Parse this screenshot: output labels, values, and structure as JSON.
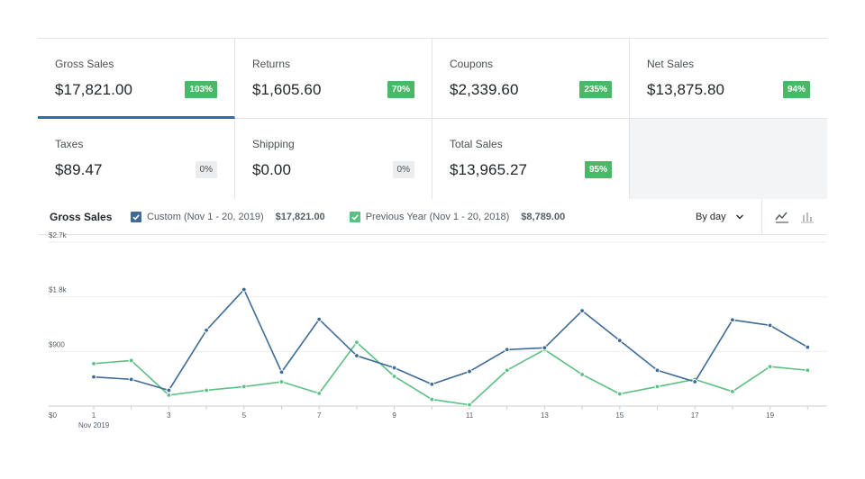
{
  "stats": [
    {
      "label": "Gross Sales",
      "value": "$17,821.00",
      "delta": "103%",
      "trend": "up",
      "selected": true
    },
    {
      "label": "Returns",
      "value": "$1,605.60",
      "delta": "70%",
      "trend": "up",
      "selected": false
    },
    {
      "label": "Coupons",
      "value": "$2,339.60",
      "delta": "235%",
      "trend": "up",
      "selected": false
    },
    {
      "label": "Net Sales",
      "value": "$13,875.80",
      "delta": "94%",
      "trend": "up",
      "selected": false
    },
    {
      "label": "Taxes",
      "value": "$89.47",
      "delta": "0%",
      "trend": "flat",
      "selected": false
    },
    {
      "label": "Shipping",
      "value": "$0.00",
      "delta": "0%",
      "trend": "flat",
      "selected": false
    },
    {
      "label": "Total Sales",
      "value": "$13,965.27",
      "delta": "95%",
      "trend": "up",
      "selected": false
    }
  ],
  "chart_header": {
    "title": "Gross Sales",
    "legend": [
      {
        "label": "Custom (Nov 1 - 20, 2019)",
        "total": "$17,821.00",
        "color": "#3e6b96"
      },
      {
        "label": "Previous Year (Nov 1 - 20, 2018)",
        "total": "$8,789.00",
        "color": "#5cc082"
      }
    ],
    "interval": "By day",
    "icons": {
      "line": "line-chart-icon",
      "bar": "bar-chart-icon",
      "chevron": "chevron-down-icon"
    }
  },
  "chart_data": {
    "type": "line",
    "x": [
      1,
      2,
      3,
      4,
      5,
      6,
      7,
      8,
      9,
      10,
      11,
      12,
      13,
      14,
      15,
      16,
      17,
      18,
      19,
      20
    ],
    "x_tick_labels": [
      "1",
      "3",
      "5",
      "7",
      "9",
      "11",
      "13",
      "15",
      "17",
      "19"
    ],
    "x_sub_label": "Nov 2019",
    "y_ticks": [
      "$0",
      "$900",
      "$1.8k",
      "$2.7k"
    ],
    "ylim": [
      0,
      2700
    ],
    "grid": true,
    "series": [
      {
        "name": "Custom (Nov 1 - 20, 2019)",
        "color": "#3e6b96",
        "values": [
          480,
          440,
          260,
          1250,
          1920,
          560,
          1430,
          830,
          630,
          360,
          570,
          930,
          960,
          1570,
          1080,
          590,
          400,
          1420,
          1330,
          970
        ]
      },
      {
        "name": "Previous Year (Nov 1 - 20, 2018)",
        "color": "#5cc082",
        "values": [
          700,
          750,
          180,
          260,
          320,
          400,
          210,
          1050,
          490,
          110,
          20,
          590,
          930,
          520,
          200,
          320,
          440,
          240,
          650,
          590
        ]
      }
    ]
  }
}
